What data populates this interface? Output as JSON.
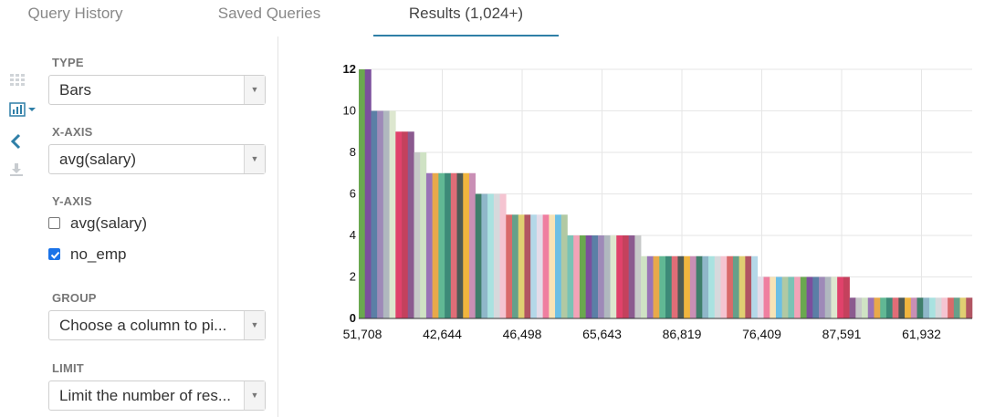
{
  "tabs": [
    {
      "label": "Query History",
      "active": false
    },
    {
      "label": "Saved Queries",
      "active": false
    },
    {
      "label": "Results (1,024+)",
      "active": true
    }
  ],
  "rail_icons": [
    "grid-icon",
    "bar-chart-icon",
    "chevron-left-icon",
    "download-icon"
  ],
  "settings": {
    "type_label": "TYPE",
    "type_value": "Bars",
    "xaxis_label": "X-AXIS",
    "xaxis_value": "avg(salary)",
    "yaxis_label": "Y-AXIS",
    "yaxis_options": [
      {
        "label": "avg(salary)",
        "checked": false
      },
      {
        "label": "no_emp",
        "checked": true
      }
    ],
    "group_label": "GROUP",
    "group_value": "Choose a column to pi...",
    "limit_label": "LIMIT",
    "limit_value": "Limit the number of res..."
  },
  "colors": {
    "accent": "#2f7fa7",
    "checkbox": "#1a73e8",
    "grid": "#e6e6e6"
  },
  "chart_data": {
    "type": "bar",
    "title": "",
    "xlabel": "",
    "ylabel": "",
    "ylim": [
      0,
      12
    ],
    "yticks": [
      0,
      2,
      4,
      6,
      8,
      10,
      12
    ],
    "x_tick_labels": [
      "51,708",
      "42,644",
      "46,498",
      "65,643",
      "86,819",
      "76,409",
      "87,591",
      "61,932"
    ],
    "grid": true,
    "series": [
      {
        "name": "no_emp",
        "values": [
          12,
          12,
          10,
          10,
          10,
          10,
          9,
          9,
          9,
          8,
          8,
          7,
          7,
          7,
          7,
          7,
          7,
          7,
          7,
          6,
          6,
          6,
          6,
          6,
          5,
          5,
          5,
          5,
          5,
          5,
          5,
          5,
          5,
          5,
          4,
          4,
          4,
          4,
          4,
          4,
          4,
          4,
          4,
          4,
          4,
          4,
          3,
          3,
          3,
          3,
          3,
          3,
          3,
          3,
          3,
          3,
          3,
          3,
          3,
          3,
          3,
          3,
          3,
          3,
          3,
          2,
          2,
          2,
          2,
          2,
          2,
          2,
          2,
          2,
          2,
          2,
          2,
          2,
          2,
          2,
          1,
          1,
          1,
          1,
          1,
          1,
          1,
          1,
          1,
          1,
          1,
          1,
          1,
          1,
          1,
          1,
          1,
          1,
          1,
          1
        ]
      }
    ],
    "palette": [
      "#6aa84f",
      "#7b4f9d",
      "#5b7fa6",
      "#9e8ab8",
      "#b0b8bf",
      "#dde7cf",
      "#e0426b",
      "#c4415d",
      "#8b5a8f",
      "#c7c9c9",
      "#cfe2c4",
      "#9a74b7",
      "#e8a94a",
      "#61b894",
      "#3d8a78",
      "#e06d77",
      "#4e5a55",
      "#f0b53e",
      "#c98fb5",
      "#3f7f6b",
      "#8fb7c9",
      "#a9e2e0",
      "#d6d9dc",
      "#f5c4d1",
      "#d96a6a",
      "#66a08a",
      "#e0cf72",
      "#b15563",
      "#b4d8e8",
      "#e4dce9",
      "#ef7fa0",
      "#f7e3b6",
      "#6bbfe5",
      "#b1c9a3",
      "#79c3b5",
      "#f2a3b8"
    ]
  }
}
